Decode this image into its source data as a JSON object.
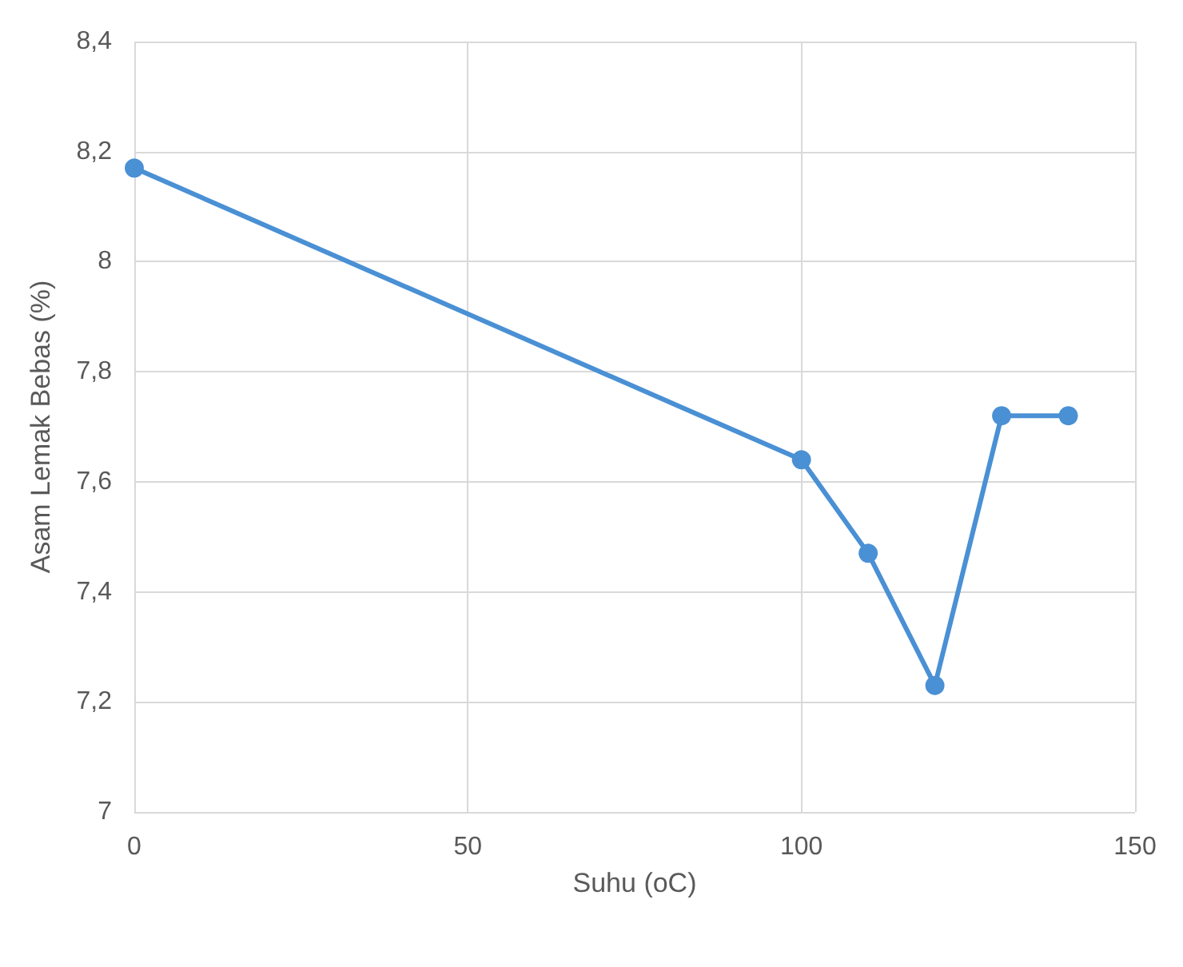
{
  "chart_data": {
    "type": "line",
    "xlabel": "Suhu (oC)",
    "ylabel": "Asam Lemak Bebas (%)",
    "x": [
      0,
      100,
      110,
      120,
      130,
      140
    ],
    "series": [
      {
        "color": "#4a90d4",
        "values": [
          8.17,
          7.64,
          7.47,
          7.23,
          7.72,
          7.72
        ]
      }
    ],
    "xlim": [
      0,
      150
    ],
    "xticks": [
      0,
      50,
      100,
      150
    ],
    "ylim": [
      7,
      8.4
    ],
    "yticks": [
      7,
      {
        "value": 7.2,
        "label": "7,2"
      },
      {
        "value": 7.4,
        "label": "7,4"
      },
      {
        "value": 7.6,
        "label": "7,6"
      },
      {
        "value": 7.8,
        "label": "7,8"
      },
      8,
      {
        "value": 8.2,
        "label": "8,2"
      },
      {
        "value": 8.4,
        "label": "8,4"
      }
    ],
    "grid": true,
    "marker": "circle",
    "line_style": "solid"
  }
}
